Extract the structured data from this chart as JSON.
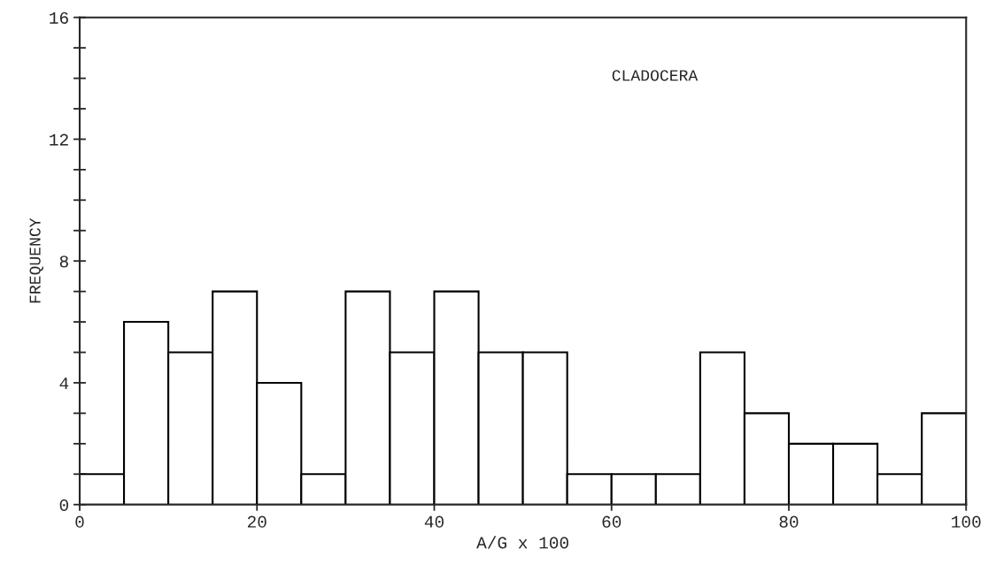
{
  "chart_data": {
    "type": "histogram",
    "bins": [
      0,
      5,
      10,
      15,
      20,
      25,
      30,
      35,
      40,
      45,
      50,
      55,
      60,
      65,
      70,
      75,
      80,
      85,
      90,
      95,
      100
    ],
    "values": [
      1,
      6,
      5,
      7,
      4,
      1,
      7,
      5,
      7,
      5,
      5,
      1,
      1,
      1,
      5,
      3,
      2,
      2,
      1,
      3
    ],
    "color": "#ffffff",
    "xlabel": "A/G x 100",
    "ylabel": "FREQUENCY",
    "annotations": [
      "CLADOCERA"
    ],
    "xlim": [
      0,
      100
    ],
    "xticks": [
      0,
      20,
      40,
      60,
      80,
      100
    ],
    "ylim": [
      0,
      16
    ],
    "yticks": [
      0,
      {
        "value": 1,
        "label": null
      },
      {
        "value": 2,
        "label": null
      },
      {
        "value": 3,
        "label": null
      },
      4,
      {
        "value": 5,
        "label": null
      },
      {
        "value": 6,
        "label": null
      },
      {
        "value": 7,
        "label": null
      },
      8,
      {
        "value": 9,
        "label": null
      },
      {
        "value": 10,
        "label": null
      },
      {
        "value": 11,
        "label": null
      },
      12,
      {
        "value": 13,
        "label": null
      },
      {
        "value": 14,
        "label": null
      },
      {
        "value": 15,
        "label": null
      },
      16
    ],
    "grid": false,
    "legend": false
  }
}
